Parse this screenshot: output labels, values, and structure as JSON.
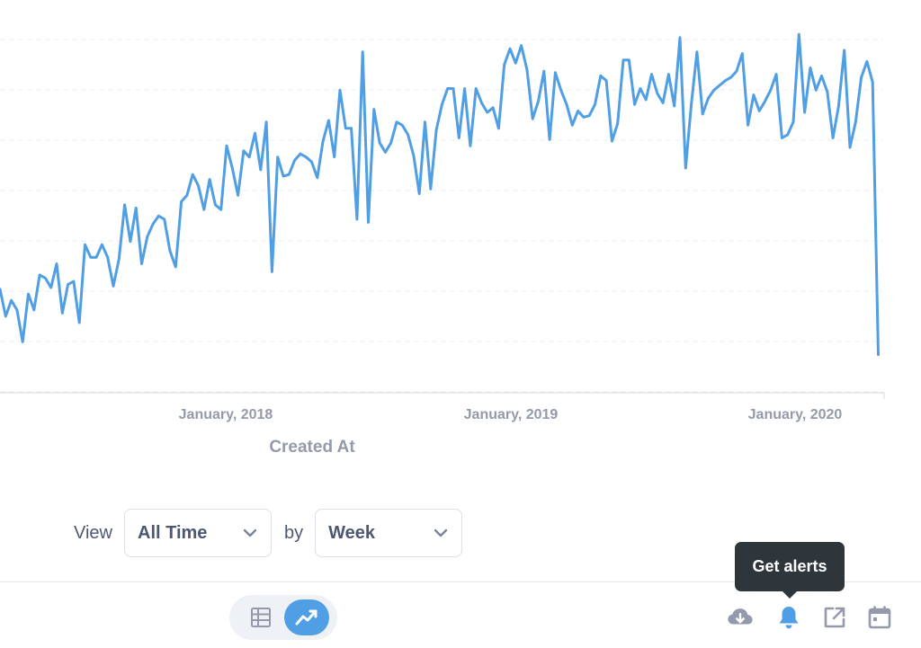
{
  "chart_data": {
    "type": "line",
    "xlabel": "Created At",
    "ylabel": "",
    "x_ticks": [
      "January, 2018",
      "January, 2019",
      "January, 2020"
    ],
    "grid": true,
    "series": [
      {
        "color": "#509ee3",
        "start": "2017-03-26",
        "step_days": 7,
        "values": [
          315,
          298,
          308,
          302,
          282,
          312,
          302,
          324,
          322,
          316,
          331,
          300,
          318,
          320,
          294,
          343,
          335,
          335,
          343,
          335,
          317,
          334,
          368,
          345,
          366,
          331,
          348,
          356,
          361,
          359,
          339,
          329,
          370,
          374,
          387,
          380,
          365,
          384,
          368,
          365,
          405,
          391,
          374,
          402,
          398,
          413,
          390,
          420,
          326,
          398,
          386,
          387,
          396,
          400,
          398,
          395,
          385,
          408,
          421,
          398,
          440,
          416,
          416,
          359,
          464,
          357,
          428,
          407,
          401,
          407,
          420,
          418,
          412,
          399,
          375,
          420,
          378,
          415,
          431,
          441,
          441,
          410,
          441,
          405,
          441,
          432,
          426,
          429,
          416,
          456,
          466,
          457,
          468,
          453,
          422,
          433,
          452,
          409,
          451,
          440,
          431,
          418,
          427,
          423,
          424,
          431,
          449,
          446,
          408,
          419,
          459,
          459,
          431,
          441,
          434,
          450,
          438,
          432,
          450,
          430,
          473,
          391,
          431,
          464,
          425,
          435,
          440,
          443,
          446,
          448,
          452,
          463,
          418,
          437,
          427,
          433,
          440,
          450,
          410,
          412,
          420,
          475,
          426,
          454,
          440,
          449,
          439,
          410,
          430,
          465,
          404,
          420,
          448,
          458,
          445,
          274
        ]
      }
    ]
  },
  "view_controls": {
    "view_label": "View",
    "time_value": "All Time",
    "by_label": "by",
    "unit_value": "Week"
  },
  "footer": {
    "tooltip": "Get alerts",
    "accent_color": "#509ee3",
    "icons": [
      "table-icon",
      "line-chart-icon",
      "download-icon",
      "bell-icon",
      "share-icon",
      "calendar-icon"
    ]
  }
}
